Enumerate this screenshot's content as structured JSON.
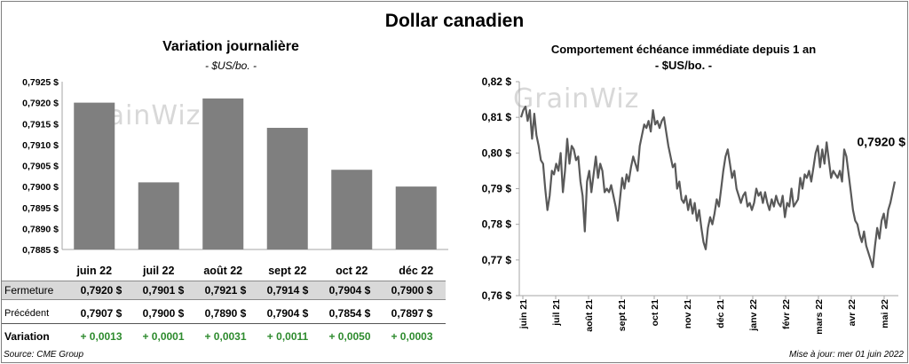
{
  "title": "Dollar canadien",
  "left_chart": {
    "title": "Variation  journalière",
    "unit": "- $US/bo. -"
  },
  "right_chart": {
    "title": "Comportement échéance immédiate depuis 1 an",
    "unit": "- $US/bo. -",
    "last_value_label": "0,7920 $"
  },
  "watermark": "GrainWiz",
  "chart_data": [
    {
      "type": "bar",
      "categories": [
        "juin 22",
        "juil 22",
        "août 22",
        "sept 22",
        "oct 22",
        "déc 22"
      ],
      "values": [
        0.792,
        0.7901,
        0.7921,
        0.7914,
        0.7904,
        0.79
      ],
      "ylim": [
        0.7885,
        0.7925
      ],
      "yticks": [
        "0,7885 $",
        "0,7890 $",
        "0,7895 $",
        "0,7900 $",
        "0,7905 $",
        "0,7910 $",
        "0,7915 $",
        "0,7920 $",
        "0,7925 $"
      ],
      "bar_color": "#7f7f7f"
    },
    {
      "type": "line",
      "ylim": [
        0.76,
        0.82
      ],
      "yticks": [
        "0,76 $",
        "0,77 $",
        "0,78 $",
        "0,79 $",
        "0,80 $",
        "0,81 $",
        "0,82 $"
      ],
      "xticks": [
        "juin 21",
        "juil 21",
        "août 21",
        "sept 21",
        "oct 21",
        "nov 21",
        "déc 21",
        "janv 22",
        "févr 22",
        "mars 22",
        "avr 22",
        "mai 22"
      ],
      "line_color": "#595959",
      "values": [
        0.81,
        0.812,
        0.813,
        0.809,
        0.812,
        0.804,
        0.811,
        0.805,
        0.802,
        0.798,
        0.797,
        0.79,
        0.784,
        0.788,
        0.795,
        0.794,
        0.797,
        0.795,
        0.8,
        0.789,
        0.795,
        0.804,
        0.797,
        0.802,
        0.801,
        0.798,
        0.799,
        0.792,
        0.788,
        0.778,
        0.792,
        0.795,
        0.789,
        0.794,
        0.799,
        0.793,
        0.797,
        0.795,
        0.789,
        0.79,
        0.789,
        0.791,
        0.788,
        0.785,
        0.781,
        0.787,
        0.793,
        0.79,
        0.794,
        0.792,
        0.796,
        0.799,
        0.797,
        0.795,
        0.802,
        0.805,
        0.808,
        0.807,
        0.809,
        0.806,
        0.812,
        0.808,
        0.809,
        0.807,
        0.809,
        0.81,
        0.806,
        0.802,
        0.799,
        0.796,
        0.797,
        0.79,
        0.792,
        0.787,
        0.786,
        0.788,
        0.784,
        0.787,
        0.783,
        0.786,
        0.781,
        0.784,
        0.779,
        0.775,
        0.773,
        0.779,
        0.782,
        0.78,
        0.783,
        0.787,
        0.785,
        0.79,
        0.795,
        0.799,
        0.801,
        0.797,
        0.793,
        0.795,
        0.79,
        0.788,
        0.786,
        0.788,
        0.789,
        0.785,
        0.786,
        0.784,
        0.786,
        0.79,
        0.788,
        0.789,
        0.786,
        0.789,
        0.786,
        0.784,
        0.787,
        0.785,
        0.788,
        0.786,
        0.785,
        0.788,
        0.782,
        0.786,
        0.785,
        0.79,
        0.785,
        0.786,
        0.787,
        0.793,
        0.79,
        0.794,
        0.793,
        0.795,
        0.792,
        0.796,
        0.8,
        0.802,
        0.796,
        0.801,
        0.797,
        0.803,
        0.798,
        0.793,
        0.795,
        0.794,
        0.793,
        0.795,
        0.792,
        0.801,
        0.799,
        0.794,
        0.789,
        0.784,
        0.781,
        0.78,
        0.777,
        0.775,
        0.778,
        0.774,
        0.772,
        0.77,
        0.768,
        0.774,
        0.779,
        0.776,
        0.781,
        0.783,
        0.779,
        0.784,
        0.786,
        0.789,
        0.792
      ]
    }
  ],
  "table": {
    "rows": [
      {
        "label": "Fermeture",
        "values": [
          "0,7920  $",
          "0,7901  $",
          "0,7921  $",
          "0,7914  $",
          "0,7904  $",
          "0,7900  $"
        ]
      },
      {
        "label": "Précédent",
        "values": [
          "0,7907  $",
          "0,7900  $",
          "0,7890  $",
          "0,7904  $",
          "0,7854  $",
          "0,7897  $"
        ]
      },
      {
        "label": "Variation",
        "values": [
          "+ 0,0013",
          "+ 0,0001",
          "+ 0,0031",
          "+ 0,0011",
          "+ 0,0050",
          "+ 0,0003"
        ]
      }
    ]
  },
  "source": "Source: CME Group",
  "updated": "Mise à jour: mer 01 juin 2022"
}
